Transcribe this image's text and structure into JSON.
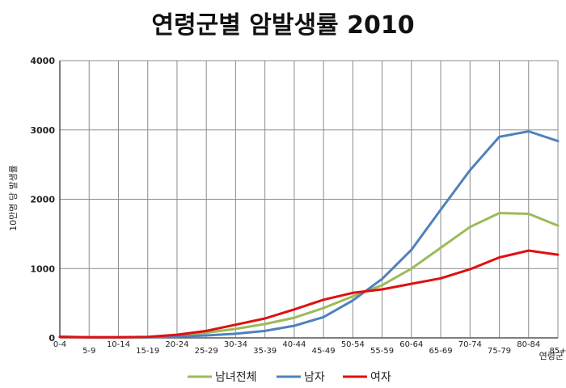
{
  "chart_data": {
    "type": "line",
    "title": "연령군별 암발생률 2010",
    "xlabel": "연령군",
    "ylabel": "10만명 당 발생률",
    "ylim": [
      0,
      4000
    ],
    "yticks": [
      0,
      1000,
      2000,
      3000,
      4000
    ],
    "grid": true,
    "legend_position": "bottom",
    "categories": [
      "0-4",
      "5-9",
      "10-14",
      "15-19",
      "20-24",
      "25-29",
      "30-34",
      "35-39",
      "40-44",
      "45-49",
      "50-54",
      "55-59",
      "60-64",
      "65-69",
      "70-74",
      "75-79",
      "80-84",
      "85+"
    ],
    "series": [
      {
        "name": "남녀전체",
        "color": "#9bbb59",
        "values": [
          15,
          8,
          8,
          12,
          30,
          75,
          130,
          200,
          290,
          430,
          600,
          760,
          1000,
          1300,
          1600,
          1800,
          1790,
          1620
        ]
      },
      {
        "name": "남자",
        "color": "#4f81bd",
        "values": [
          18,
          8,
          8,
          10,
          18,
          35,
          60,
          100,
          175,
          300,
          540,
          850,
          1270,
          1850,
          2420,
          2900,
          2980,
          2840
        ]
      },
      {
        "name": "여자",
        "color": "#e01010",
        "values": [
          15,
          8,
          8,
          15,
          45,
          100,
          190,
          280,
          410,
          550,
          650,
          700,
          780,
          860,
          990,
          1160,
          1260,
          1200
        ]
      }
    ]
  }
}
